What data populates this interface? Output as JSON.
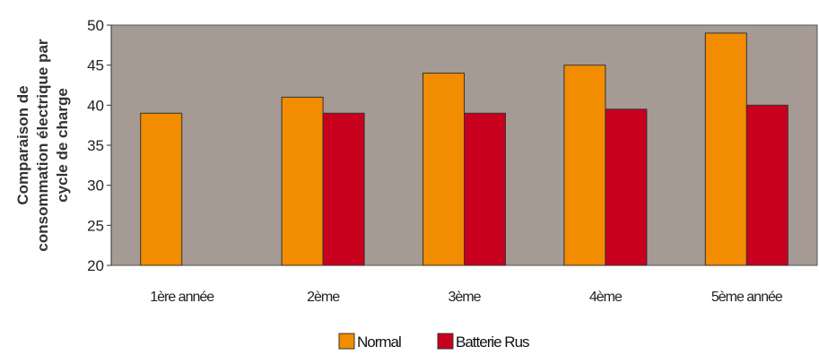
{
  "chart_data": {
    "type": "bar",
    "title": "",
    "xlabel": "",
    "ylabel_lines": [
      "Comparaison de",
      "consommation électrique par",
      "cycle de charge"
    ],
    "categories": [
      "1ère année",
      "2ème",
      "3ème",
      "4ème",
      "5ème année"
    ],
    "series": [
      {
        "name": "Normal",
        "color": "#f28c00",
        "values": [
          39,
          41,
          44,
          45,
          49
        ]
      },
      {
        "name": "Batterie Rus",
        "color": "#c8001e",
        "values": [
          null,
          39,
          39,
          39.5,
          40
        ]
      }
    ],
    "ylim": [
      20,
      50
    ],
    "yticks": [
      20,
      25,
      30,
      35,
      40,
      45,
      50
    ],
    "plot_background": "#a69a94",
    "grid": false,
    "legend_position": "bottom"
  }
}
